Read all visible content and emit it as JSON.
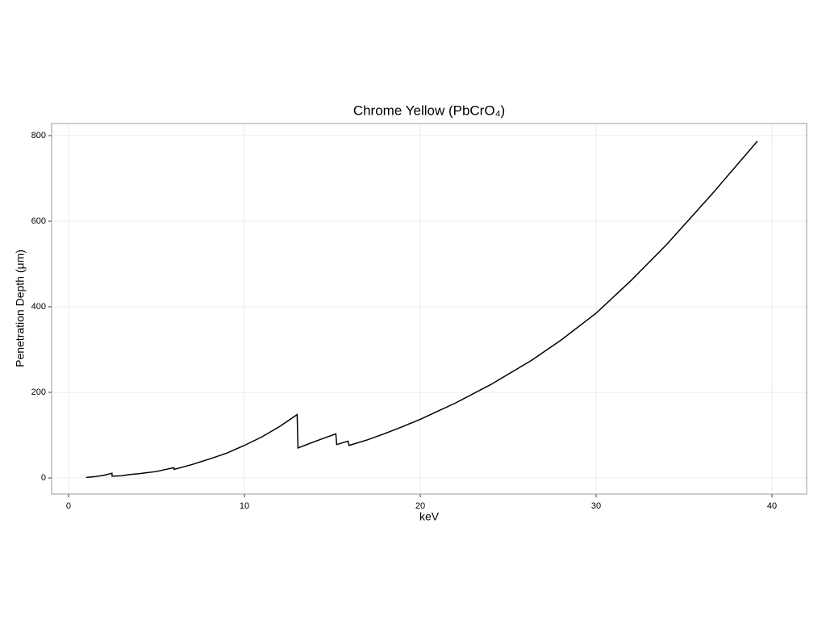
{
  "chart_data": {
    "type": "line",
    "title": "Chrome Yellow (PbCrO₄)",
    "x_label": "keV",
    "y_label": "Penetration Depth (μm)",
    "x": [
      1.0,
      1.5,
      2.0,
      2.47,
      2.48,
      3.0,
      3.5,
      4.0,
      5.0,
      5.99,
      6.0,
      7.0,
      8.0,
      9.0,
      10.0,
      11.0,
      12.0,
      13.0,
      13.05,
      14.0,
      15.2,
      15.25,
      15.9,
      15.95,
      17.0,
      18.0,
      19.0,
      20.0,
      22.0,
      24.0,
      26.3,
      28.0,
      30.0,
      32.0,
      34.0,
      36.6,
      39.17
    ],
    "series": [
      {
        "name": "Penetration Depth",
        "color": "#000000",
        "values": [
          1,
          3,
          6,
          11,
          4,
          5,
          8,
          10,
          15,
          24,
          20,
          31,
          44,
          58,
          76,
          96,
          120,
          148,
          70,
          85,
          103,
          78,
          86,
          76,
          89,
          104,
          120,
          137,
          175,
          218,
          274,
          322,
          385,
          462,
          545,
          664,
          787
        ]
      }
    ],
    "xlim": [
      -0.96,
      41.97
    ],
    "ylim": [
      -37.7,
      828.3
    ],
    "xticks": [
      0,
      10,
      20,
      30,
      40
    ],
    "yticks": [
      0,
      200,
      400,
      600,
      800
    ],
    "grid": true
  }
}
